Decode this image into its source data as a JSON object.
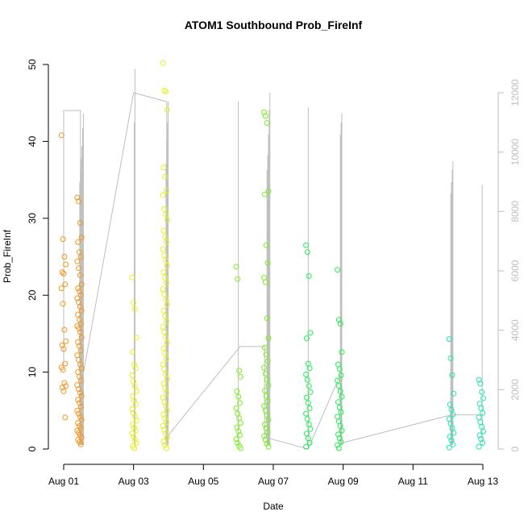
{
  "chart_data": {
    "type": "scatter",
    "title": "ATOM1 Southbound Prob_FireInf",
    "xlabel": "Date",
    "ylabel": "Prob_FireInf",
    "x_ticks": [
      "Aug 01",
      "Aug 03",
      "Aug 05",
      "Aug 07",
      "Aug 09",
      "Aug 11",
      "Aug 13"
    ],
    "xlim": [
      "Aug 01",
      "Aug 13"
    ],
    "ylim": [
      0,
      50
    ],
    "y_ticks": [
      "0",
      "10",
      "20",
      "30",
      "40",
      "50"
    ],
    "y2_ticks": [
      "0",
      "2000",
      "4000",
      "6000",
      "8000",
      "10000",
      "12000"
    ],
    "y2lim": [
      0,
      12000
    ],
    "grid": false,
    "legend": "none",
    "colors": {
      "line": "#bebebe",
      "axis": "#000000",
      "axis_right": "#bebebe"
    },
    "series": [
      {
        "day": 0.0,
        "color": "#f5961e",
        "values": [
          40.8,
          27.3,
          25.0,
          24.0,
          23.0,
          22.8,
          21.4,
          20.9,
          18.9,
          15.5,
          14.0,
          13.5,
          13.0,
          11.1,
          10.6,
          10.3,
          8.6,
          8.2,
          8.0,
          7.5,
          4.1
        ]
      },
      {
        "day": 0.45,
        "color": "#f5961e",
        "values": [
          32.7,
          32.2,
          29.4,
          27.5,
          26.9,
          25.6,
          25.0,
          24.4,
          23.5,
          22.6,
          21.4,
          20.9,
          20.5,
          20.0,
          19.6,
          19.1,
          18.5,
          18.0,
          17.5,
          16.8,
          16.3,
          16.0,
          15.7,
          15.2,
          14.5,
          13.9,
          13.4,
          12.8,
          12.2,
          11.6,
          11.0,
          10.5,
          10.0,
          9.4,
          8.9,
          8.3,
          7.8,
          7.3,
          6.9,
          6.4,
          6.0,
          5.5,
          5.0,
          4.6,
          4.2,
          3.8,
          3.4,
          3.0,
          2.7,
          2.4,
          2.1,
          1.8,
          1.5,
          1.2,
          0.9,
          0.6
        ]
      },
      {
        "day": 2.02,
        "color": "#e8f01e",
        "values": [
          22.3,
          19.0,
          18.2,
          14.5,
          12.6,
          11.0,
          10.5,
          9.6,
          8.8,
          8.2,
          7.5,
          6.9,
          6.3,
          5.8,
          5.2,
          4.7,
          4.2,
          3.7,
          3.2,
          2.8,
          2.4,
          2.0,
          1.6,
          1.2,
          0.8,
          0.4,
          0.1
        ]
      },
      {
        "day": 2.9,
        "color": "#e8f01e",
        "values": [
          50.2,
          46.6,
          46.5,
          44.1,
          36.6,
          35.4,
          33.6,
          33.0,
          31.2,
          30.5,
          29.8,
          28.4,
          27.6,
          26.9,
          26.0,
          25.2,
          24.5,
          23.8,
          23.0,
          22.3,
          21.6,
          20.8,
          20.1,
          19.5,
          18.8,
          18.0,
          17.3,
          16.6,
          15.9,
          15.2,
          14.5,
          13.8,
          13.1,
          12.4,
          11.7,
          11.0,
          10.4,
          9.7,
          9.1,
          8.5,
          7.9,
          7.3,
          6.7,
          6.1,
          5.6,
          5.0,
          4.5,
          4.0,
          3.5,
          3.0,
          2.5,
          2.0,
          1.5,
          1.0,
          0.5,
          0.1
        ]
      },
      {
        "day": 5.0,
        "color": "#78f01e",
        "values": [
          23.7,
          22.1,
          10.2,
          9.4,
          7.5,
          6.8,
          6.0,
          5.3,
          4.6,
          4.0,
          3.4,
          2.8,
          2.3,
          1.8,
          1.3,
          0.8,
          0.4,
          0.1
        ]
      },
      {
        "day": 5.8,
        "color": "#78f01e",
        "values": [
          43.8,
          43.3,
          42.4,
          33.5,
          33.1,
          26.5,
          24.2,
          22.3,
          21.7,
          17.0,
          14.4,
          13.2,
          12.3,
          11.4,
          10.6,
          9.8,
          9.0,
          8.3,
          7.6,
          6.9,
          6.2,
          5.6,
          5.0,
          4.4,
          3.8,
          3.2,
          2.7,
          2.2,
          1.7,
          1.2,
          0.7,
          0.3
        ]
      },
      {
        "day": 7.0,
        "color": "#1ef050",
        "values": [
          26.5,
          25.6,
          22.5,
          15.1,
          14.4,
          11.1,
          10.5,
          9.7,
          9.0,
          8.2,
          7.4,
          6.7,
          6.0,
          5.3,
          4.6,
          3.9,
          3.2,
          2.6,
          2.0,
          1.4,
          0.8,
          0.3
        ]
      },
      {
        "day": 7.9,
        "color": "#1ef050",
        "values": [
          23.3,
          16.8,
          16.3,
          12.6,
          11.0,
          10.4,
          9.6,
          8.9,
          8.2,
          7.5,
          6.8,
          6.1,
          5.4,
          4.8,
          4.2,
          3.6,
          3.0,
          2.4,
          1.9,
          1.4,
          0.9,
          0.5,
          0.1
        ]
      },
      {
        "day": 11.1,
        "color": "#1ee6b4",
        "values": [
          14.3,
          11.8,
          9.6,
          7.2,
          5.8,
          5.1,
          4.5,
          3.9,
          3.3,
          2.7,
          2.1,
          1.6,
          1.1,
          0.6,
          0.2
        ]
      },
      {
        "day": 11.95,
        "color": "#1ee6b4",
        "values": [
          9.0,
          8.5,
          7.4,
          6.6,
          5.9,
          5.3,
          4.7,
          4.1,
          3.5,
          2.9,
          2.3,
          1.8,
          1.3,
          0.8,
          0.3
        ]
      }
    ],
    "line_trace": [
      {
        "day": 0.0,
        "right_value": 2850
      },
      {
        "day": 0.0,
        "right_value": 11400
      },
      {
        "day": 0.48,
        "right_value": 11400
      },
      {
        "day": 0.48,
        "right_value": 2000
      },
      {
        "day": 2.0,
        "right_value": 12000
      },
      {
        "day": 2.95,
        "right_value": 11700
      },
      {
        "day": 2.95,
        "right_value": 400
      },
      {
        "day": 5.05,
        "right_value": 3450
      },
      {
        "day": 5.75,
        "right_value": 3450
      },
      {
        "day": 5.75,
        "right_value": 400
      },
      {
        "day": 7.0,
        "right_value": 0
      },
      {
        "day": 7.95,
        "right_value": 2600
      },
      {
        "day": 7.95,
        "right_value": 200
      },
      {
        "day": 11.1,
        "right_value": 1150
      },
      {
        "day": 12.0,
        "right_value": 1150
      }
    ],
    "line_spikes": [
      {
        "day": 0.46,
        "values": [
          9000,
          9400,
          9800,
          10200,
          10800,
          11300
        ]
      },
      {
        "day": 2.02,
        "values": [
          11000,
          12800
        ]
      },
      {
        "day": 2.93,
        "values": [
          9600,
          10400,
          11000,
          11700
        ]
      },
      {
        "day": 5.0,
        "values": [
          11700
        ]
      },
      {
        "day": 5.82,
        "values": [
          9400,
          9900,
          10600,
          11400,
          12000
        ]
      },
      {
        "day": 7.0,
        "values": [
          11500
        ]
      },
      {
        "day": 7.92,
        "values": [
          10600,
          11000,
          11300
        ]
      },
      {
        "day": 11.08,
        "values": [
          8600,
          9000,
          9400,
          9700
        ]
      },
      {
        "day": 11.98,
        "values": [
          8900
        ]
      }
    ]
  }
}
